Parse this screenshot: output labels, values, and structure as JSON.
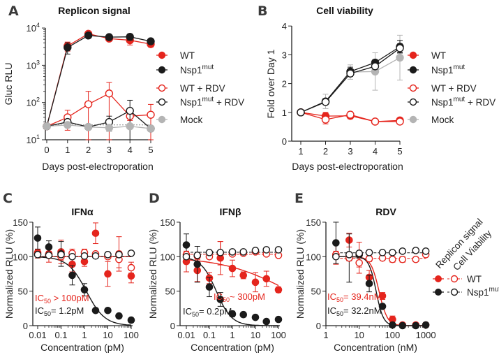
{
  "colors": {
    "red": "#e5251d",
    "black": "#1b1b1b",
    "gray": "#b4b4b4"
  },
  "panels": {
    "A": {
      "letter": "A",
      "title": "Replicon signal",
      "ylabel": "Gluc RLU",
      "xlabel": "Days post-electroporation"
    },
    "B": {
      "letter": "B",
      "title": "Cell viability",
      "ylabel": "Fold over Day 1",
      "xlabel": "Days post-electroporation"
    },
    "C": {
      "letter": "C",
      "title": "IFNα",
      "ylabel": "Normalized RLU (%)",
      "xlabel": "Concentration (pM)"
    },
    "D": {
      "letter": "D",
      "title": "IFNβ",
      "ylabel": "Normalized RLU (%)",
      "xlabel": "Concentration (pM)"
    },
    "E": {
      "letter": "E",
      "title": "RDV",
      "ylabel": "Normalized RLU (%)",
      "xlabel": "Concentration (nM)"
    }
  },
  "legend_AB": [
    {
      "name": "WT",
      "sup": "",
      "suffix": "",
      "color": "#e5251d",
      "filled": true
    },
    {
      "name": "Nsp1",
      "sup": "mut",
      "suffix": "",
      "color": "#1b1b1b",
      "filled": true
    },
    {
      "name": "WT + RDV",
      "sup": "",
      "suffix": "",
      "color": "#e5251d",
      "filled": false
    },
    {
      "name": "Nsp1",
      "sup": "mut",
      "suffix": " + RDV",
      "color": "#1b1b1b",
      "filled": false
    },
    {
      "name": "Mock",
      "sup": "",
      "suffix": "",
      "color": "#b4b4b4",
      "filled": true
    }
  ],
  "legend_E": {
    "headers": [
      "Replicon signal",
      "Cell Viability"
    ],
    "rows": [
      {
        "name": "WT",
        "sup": "",
        "color": "#e5251d"
      },
      {
        "name": "Nsp1",
        "sup": "mut",
        "color": "#1b1b1b"
      }
    ]
  },
  "chart_data": [
    {
      "panel": "A",
      "type": "line",
      "title": "Replicon signal",
      "xlabel": "Days post-electroporation",
      "ylabel": "Gluc RLU",
      "yscale": "log",
      "ylim": [
        10,
        10000
      ],
      "xlim": [
        0,
        5
      ],
      "x": [
        0,
        1,
        2,
        3,
        4,
        5
      ],
      "xticks": [
        "0",
        "1",
        "2",
        "3",
        "4",
        "5"
      ],
      "yticks": [
        {
          "base": "10",
          "exp": "1",
          "value": 10
        },
        {
          "base": "10",
          "exp": "2",
          "value": 100
        },
        {
          "base": "10",
          "exp": "3",
          "value": 1000
        },
        {
          "base": "10",
          "exp": "4",
          "value": 10000
        }
      ],
      "reference_line": 25,
      "series": [
        {
          "name": "WT",
          "style": "red-filled",
          "values": [
            23,
            3300,
            7000,
            5200,
            4700,
            3700
          ],
          "err": [
            0,
            900,
            500,
            700,
            1200,
            600
          ]
        },
        {
          "name": "Nsp1mut",
          "style": "black-filled",
          "values": [
            23,
            3000,
            6300,
            5700,
            5800,
            4400
          ],
          "err": [
            0,
            1000,
            900,
            600,
            1100,
            700
          ]
        },
        {
          "name": "WT + RDV",
          "style": "red-open",
          "values": [
            23,
            40,
            90,
            175,
            43,
            47
          ],
          "err": [
            0,
            22,
            110,
            170,
            10,
            42
          ]
        },
        {
          "name": "Nsp1mut + RDV",
          "style": "black-open",
          "values": [
            23,
            30,
            22,
            30,
            60,
            20
          ],
          "err": [
            0,
            5,
            2,
            13,
            55,
            2
          ]
        },
        {
          "name": "Mock",
          "style": "gray-filled",
          "values": [
            23,
            25,
            22,
            21,
            23,
            20
          ],
          "err": [
            0,
            3,
            2,
            4,
            2,
            1
          ]
        }
      ]
    },
    {
      "panel": "B",
      "type": "line",
      "title": "Cell viability",
      "xlabel": "Days post-electroporation",
      "ylabel": "Fold over Day 1",
      "ylim": [
        0,
        4
      ],
      "xlim": [
        1,
        5
      ],
      "x": [
        1,
        2,
        3,
        4,
        5
      ],
      "xticks": [
        "1",
        "2",
        "3",
        "4",
        "5"
      ],
      "yticks": [
        "0",
        "1",
        "2",
        "3",
        "4"
      ],
      "series": [
        {
          "name": "Mock",
          "style": "gray-filled",
          "values": [
            1,
            1.38,
            2.4,
            2.42,
            2.9
          ],
          "err": [
            0,
            0.25,
            0.25,
            0.65,
            0.78
          ]
        },
        {
          "name": "WT",
          "style": "red-filled",
          "values": [
            1,
            0.87,
            0.88,
            0.68,
            0.72
          ],
          "err": [
            0,
            0.13,
            0.1,
            0.05,
            0.05
          ]
        },
        {
          "name": "WT + RDV",
          "style": "red-open",
          "values": [
            1,
            0.75,
            0.92,
            0.68,
            0.68
          ],
          "err": [
            0,
            0.15,
            0.1,
            0.03,
            0.03
          ]
        },
        {
          "name": "Nsp1mut",
          "style": "black-filled",
          "values": [
            1,
            1.38,
            2.42,
            2.73,
            3.28
          ],
          "err": [
            0,
            0.1,
            0.15,
            0.1,
            0.22
          ]
        },
        {
          "name": "Nsp1mut + RDV",
          "style": "black-open",
          "values": [
            1,
            1.36,
            2.35,
            2.6,
            3.23
          ],
          "err": [
            0,
            0.05,
            0.1,
            0.1,
            0.15
          ]
        }
      ]
    },
    {
      "panel": "C",
      "type": "scatter",
      "title": "IFNα",
      "xlabel": "Concentration (pM)",
      "ylabel": "Normalized RLU (%)",
      "xscale": "log",
      "xlim": [
        0.01,
        100
      ],
      "ylim": [
        0,
        150
      ],
      "xticks": [
        "0.01",
        "0.1",
        "1",
        "10",
        "100"
      ],
      "yticks": [
        "0",
        "50",
        "100",
        "150"
      ],
      "x": [
        0.01,
        0.03,
        0.1,
        0.3,
        1,
        3,
        10,
        30,
        100
      ],
      "ic50_labels": [
        {
          "prefix": "IC",
          "sub": "50",
          "text": " > 100pM",
          "color": "#e5251d",
          "ic50": null
        },
        {
          "prefix": "IC",
          "sub": "50",
          "text": "= 1.2pM",
          "color": "#1b1b1b",
          "ic50": 1.2
        }
      ],
      "series": [
        {
          "name": "WT",
          "style": "red-filled",
          "values": [
            106,
            104,
            107,
            89,
            93,
            134,
            75,
            104,
            72
          ],
          "err": [
            5,
            12,
            17,
            11,
            7,
            15,
            18,
            25,
            10
          ]
        },
        {
          "name": "Nsp1mut",
          "style": "black-filled",
          "values": [
            127,
            114,
            104,
            73,
            52,
            22,
            22,
            14,
            8
          ],
          "err": [
            16,
            9,
            18,
            14,
            9,
            0,
            0,
            0,
            0
          ]
        },
        {
          "name": "WT",
          "style": "red-open",
          "values": [
            104,
            103,
            100,
            105,
            106,
            104,
            100,
            96,
            84
          ],
          "err": [
            6,
            5,
            5,
            6,
            5,
            3,
            3,
            12,
            8
          ]
        },
        {
          "name": "Nsp1mut",
          "style": "black-open",
          "values": [
            103,
            102,
            103,
            100,
            101,
            101,
            103,
            103,
            105
          ],
          "err": [
            2,
            2,
            2,
            2,
            2,
            2,
            2,
            2,
            2
          ]
        }
      ]
    },
    {
      "panel": "D",
      "type": "scatter",
      "title": "IFNβ",
      "xlabel": "Concentration (pM)",
      "ylabel": "Normalized RLU (%)",
      "xscale": "log",
      "xlim": [
        0.01,
        100
      ],
      "ylim": [
        0,
        150
      ],
      "xticks": [
        "0.01",
        "0.1",
        "1",
        "10",
        "100"
      ],
      "yticks": [
        "0",
        "50",
        "100",
        "150"
      ],
      "x": [
        0.01,
        0.03,
        0.1,
        0.3,
        1,
        3,
        10,
        30,
        100
      ],
      "ic50_labels": [
        {
          "prefix": "IC",
          "sub": "50",
          "text": "~ 300pM",
          "color": "#e5251d",
          "ic50": 300
        },
        {
          "prefix": "IC",
          "sub": "50",
          "text": "= 0.2pM",
          "color": "#1b1b1b",
          "ic50": 0.2
        }
      ],
      "series": [
        {
          "name": "WT",
          "style": "red-filled",
          "values": [
            93,
            80,
            69,
            98,
            83,
            73,
            63,
            68,
            52
          ],
          "err": [
            15,
            16,
            8,
            24,
            12,
            5,
            14,
            11,
            4
          ]
        },
        {
          "name": "Nsp1mut",
          "style": "black-filled",
          "values": [
            117,
            89,
            56,
            38,
            17,
            16,
            12,
            6,
            9
          ],
          "err": [
            16,
            26,
            14,
            10,
            4,
            0,
            0,
            0,
            0
          ]
        },
        {
          "name": "WT",
          "style": "red-open",
          "values": [
            103,
            101,
            100,
            105,
            104,
            105,
            107,
            104,
            102
          ],
          "err": [
            5,
            4,
            2,
            17,
            3,
            3,
            3,
            2,
            2
          ]
        },
        {
          "name": "Nsp1mut",
          "style": "black-open",
          "values": [
            100,
            102,
            106,
            106,
            107,
            107,
            109,
            110,
            110
          ],
          "err": [
            2,
            2,
            2,
            2,
            2,
            2,
            2,
            2,
            2
          ]
        }
      ]
    },
    {
      "panel": "E",
      "type": "scatter",
      "title": "RDV",
      "xlabel": "Concentration (nM)",
      "ylabel": "Normalized RLU (%)",
      "xscale": "log",
      "xlim": [
        1,
        1000
      ],
      "ylim": [
        0,
        150
      ],
      "xticks": [
        "1",
        "10",
        "100",
        "1000"
      ],
      "yticks": [
        "0",
        "50",
        "100",
        "150"
      ],
      "x": [
        2,
        5,
        10,
        20,
        50,
        100,
        200,
        500,
        1000
      ],
      "ic50_labels": [
        {
          "prefix": "IC",
          "sub": "50",
          "text": "= 39.4nM",
          "color": "#e5251d",
          "ic50": 39.4
        },
        {
          "prefix": "IC",
          "sub": "50",
          "text": "= 32.2nM",
          "color": "#1b1b1b",
          "ic50": 32.2
        }
      ],
      "series": [
        {
          "name": "WT",
          "style": "red-filled",
          "values": [
            103,
            124,
            103,
            70,
            43,
            9,
            1,
            1,
            1
          ],
          "err": [
            14,
            10,
            18,
            10,
            5,
            5,
            2,
            2,
            2
          ]
        },
        {
          "name": "Nsp1mut",
          "style": "black-filled",
          "values": [
            120,
            98,
            103,
            61,
            28,
            1,
            0,
            0,
            1
          ],
          "err": [
            30,
            35,
            5,
            12,
            2,
            0,
            0,
            0,
            0
          ]
        },
        {
          "name": "WT",
          "style": "red-open",
          "values": [
            103,
            98,
            91,
            97,
            98,
            96,
            96,
            96,
            103
          ],
          "err": [
            5,
            4,
            15,
            4,
            3,
            4,
            4,
            3,
            3
          ]
        },
        {
          "name": "Nsp1mut",
          "style": "black-open",
          "values": [
            100,
            103,
            105,
            106,
            106,
            106,
            108,
            109,
            108
          ],
          "err": [
            2,
            2,
            2,
            2,
            2,
            2,
            2,
            2,
            2
          ]
        }
      ]
    }
  ]
}
